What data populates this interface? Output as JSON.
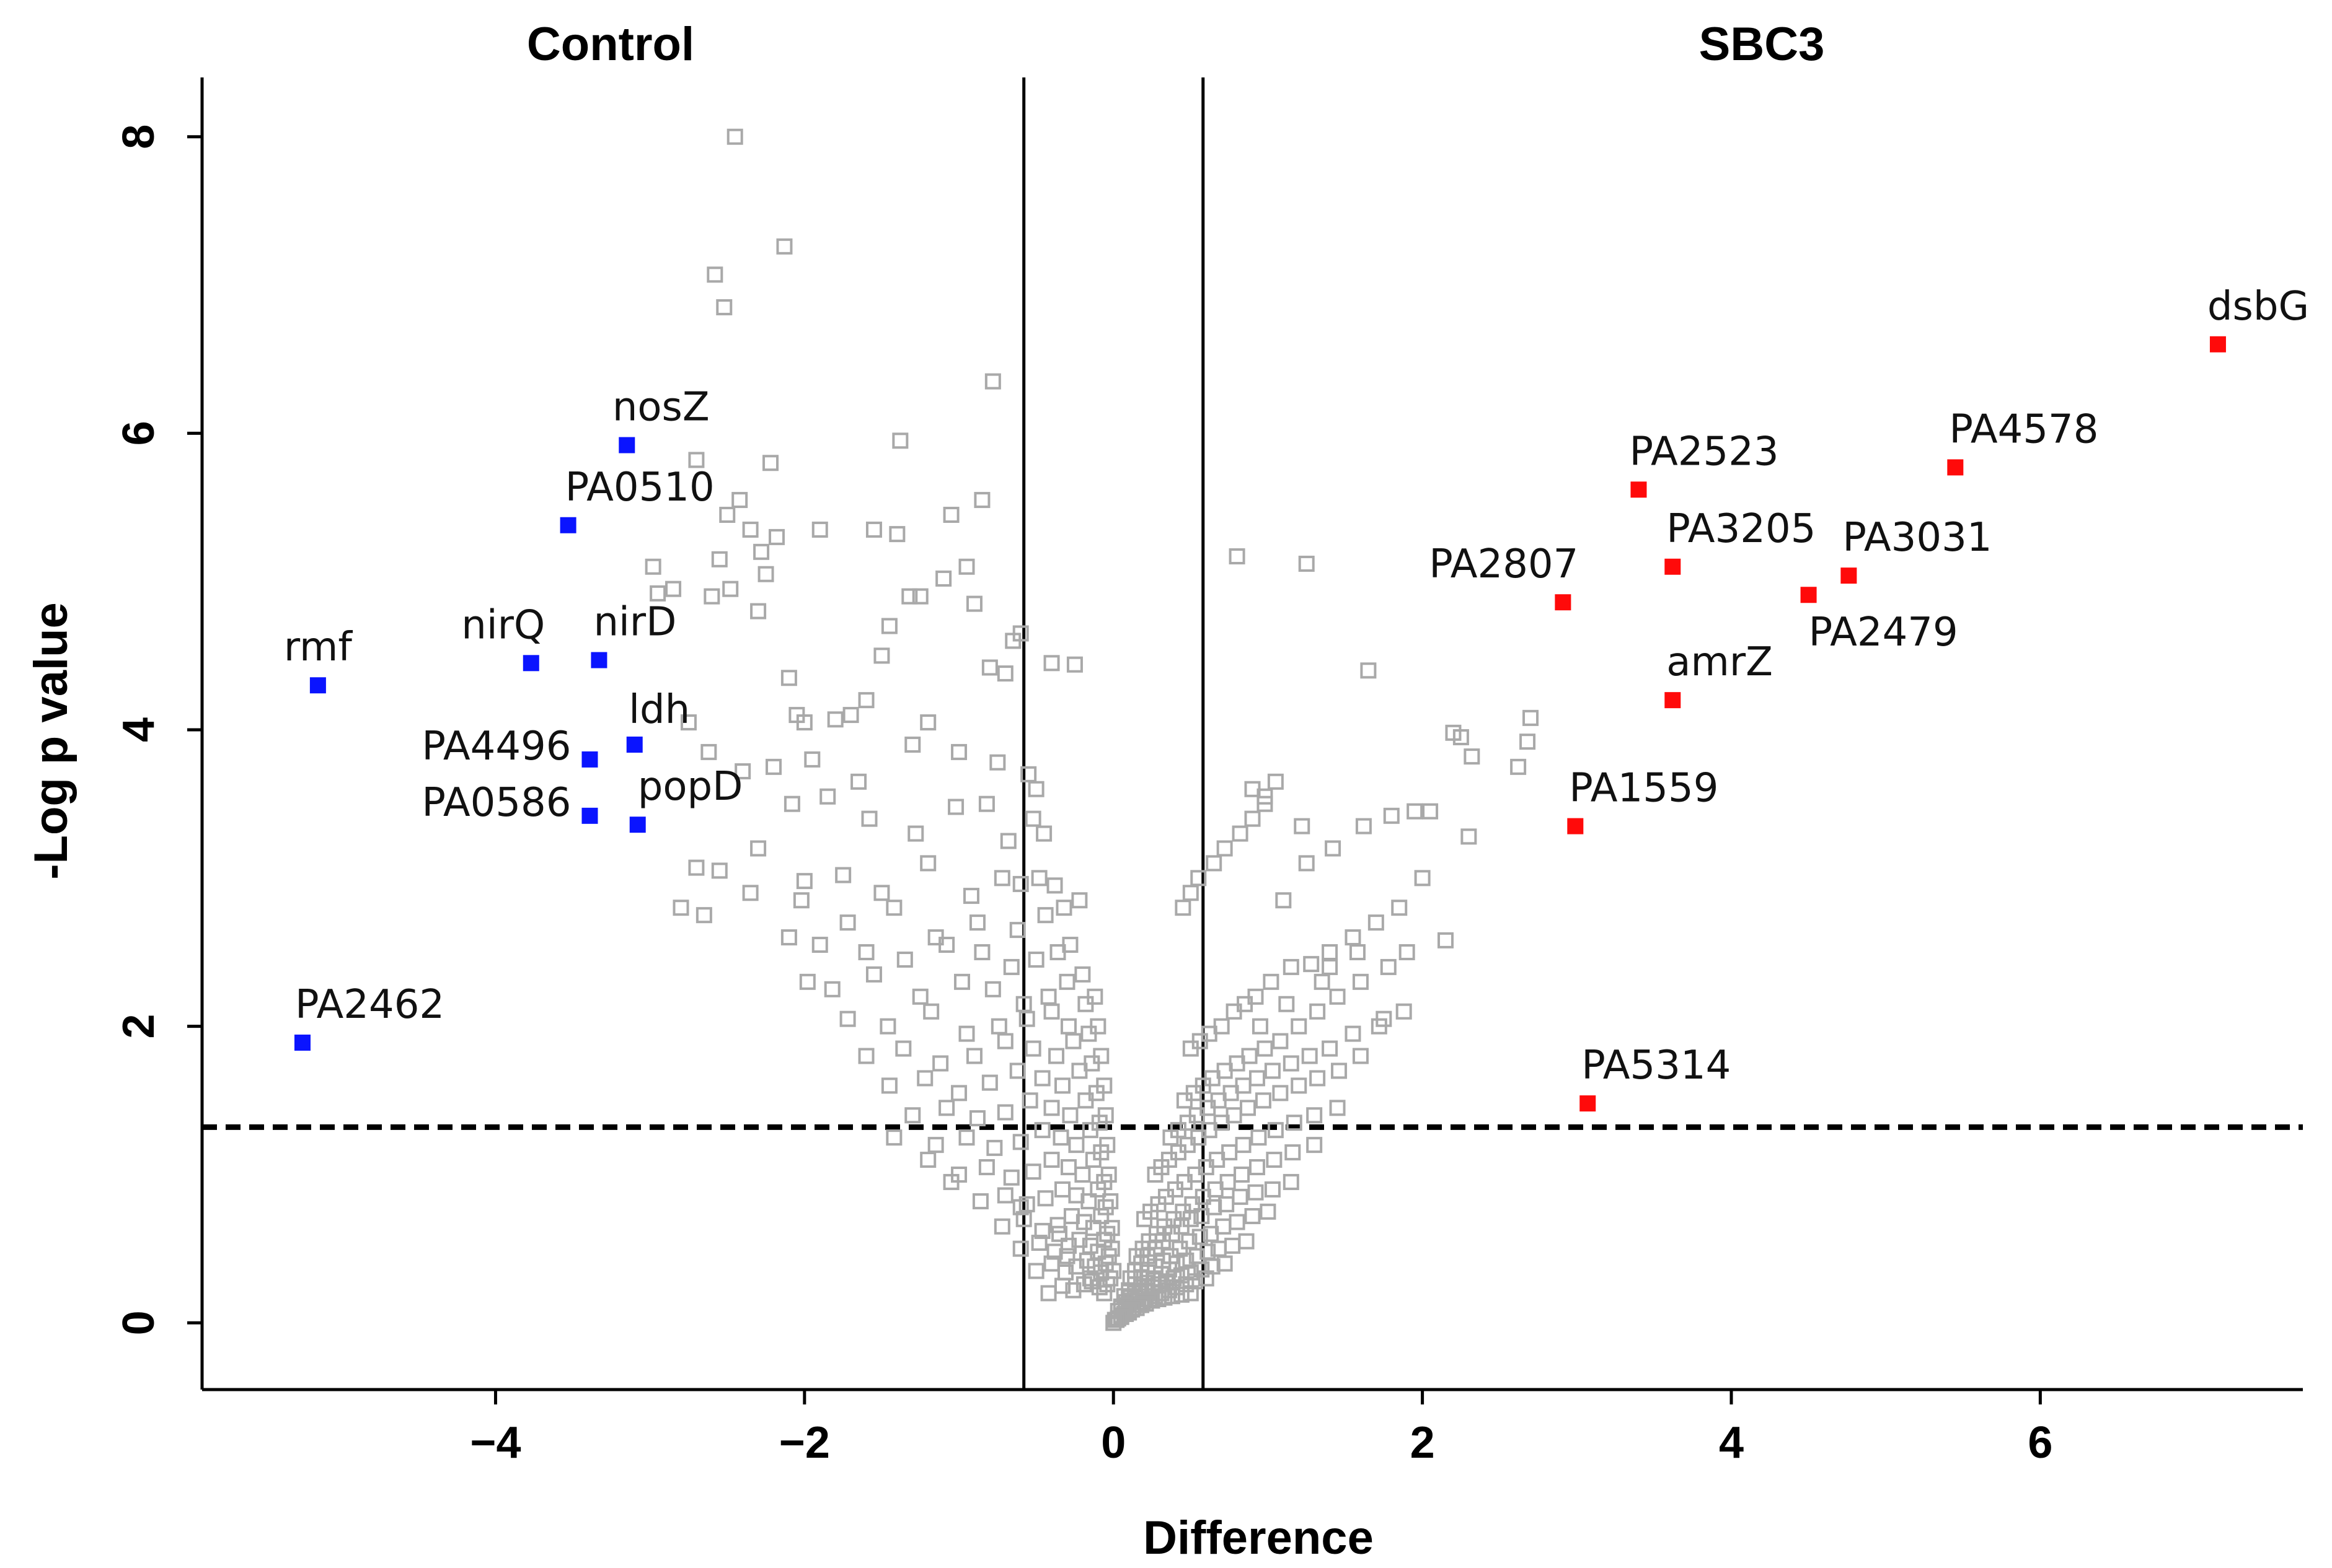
{
  "chart_data": {
    "type": "scatter",
    "title": "",
    "group_labels": {
      "left": "Control",
      "right": "SBC3"
    },
    "xlabel": "Difference",
    "ylabel": "-Log p value",
    "xlim": [
      -5.9,
      7.7
    ],
    "ylim": [
      -0.45,
      8.4
    ],
    "x_ticks": [
      -4,
      -2,
      0,
      2,
      4,
      6
    ],
    "x_tick_labels": [
      "−4",
      "−2",
      "0",
      "2",
      "4",
      "6"
    ],
    "y_ticks": [
      0,
      2,
      4,
      6,
      8
    ],
    "y_tick_labels": [
      "0",
      "2",
      "4",
      "6",
      "8"
    ],
    "grid": false,
    "fold_change_cutoffs": [
      -0.58,
      0.58
    ],
    "significance_cutoff": 1.32,
    "colors": {
      "control": "#0a14ff",
      "sbc3": "#ff0a0a",
      "background": "#a9a9a9"
    },
    "labeled_points": [
      {
        "name": "rmf",
        "x": -5.15,
        "y": 4.3,
        "group": "control"
      },
      {
        "name": "PA2462",
        "x": -5.25,
        "y": 1.89,
        "group": "control"
      },
      {
        "name": "nosZ",
        "x": -3.15,
        "y": 5.92,
        "group": "control"
      },
      {
        "name": "PA0510",
        "x": -3.53,
        "y": 5.38,
        "group": "control"
      },
      {
        "name": "nirQ",
        "x": -3.77,
        "y": 4.45,
        "group": "control"
      },
      {
        "name": "nirD",
        "x": -3.33,
        "y": 4.47,
        "group": "control"
      },
      {
        "name": "ldh",
        "x": -3.1,
        "y": 3.9,
        "group": "control"
      },
      {
        "name": "PA4496",
        "x": -3.39,
        "y": 3.8,
        "group": "control"
      },
      {
        "name": "PA0586",
        "x": -3.39,
        "y": 3.42,
        "group": "control"
      },
      {
        "name": "popD",
        "x": -3.08,
        "y": 3.36,
        "group": "control"
      },
      {
        "name": "dsbG",
        "x": 7.15,
        "y": 6.6,
        "group": "sbc3"
      },
      {
        "name": "PA4578",
        "x": 5.45,
        "y": 5.77,
        "group": "sbc3"
      },
      {
        "name": "PA2523",
        "x": 3.4,
        "y": 5.62,
        "group": "sbc3"
      },
      {
        "name": "PA3205",
        "x": 3.62,
        "y": 5.1,
        "group": "sbc3"
      },
      {
        "name": "PA3031",
        "x": 4.76,
        "y": 5.04,
        "group": "sbc3"
      },
      {
        "name": "PA2807",
        "x": 2.91,
        "y": 4.86,
        "group": "sbc3"
      },
      {
        "name": "PA2479",
        "x": 4.5,
        "y": 4.91,
        "group": "sbc3"
      },
      {
        "name": "amrZ",
        "x": 3.62,
        "y": 4.2,
        "group": "sbc3"
      },
      {
        "name": "PA1559",
        "x": 2.99,
        "y": 3.35,
        "group": "sbc3"
      },
      {
        "name": "PA5314",
        "x": 3.07,
        "y": 1.48,
        "group": "sbc3"
      }
    ],
    "background_points": {
      "x": [
        -2.45,
        -2.13,
        -2.58,
        -2.52,
        -0.78,
        -1.38,
        -2.7,
        -2.22,
        -2.42,
        -2.35,
        -0.85,
        -1.05,
        -2.5,
        -2.18,
        -2.28,
        -1.9,
        -2.98,
        -2.95,
        -2.55,
        -2.48,
        -2.3,
        -2.25,
        -1.25,
        -1.1,
        -0.95,
        -1.55,
        -1.4,
        -0.65,
        -2.6,
        -2.85,
        -1.45,
        -0.6,
        -2.0,
        -1.5,
        -1.32,
        -0.9,
        -1.6,
        -1.7,
        -0.8,
        -1.8,
        -2.1,
        -2.05,
        -1.2,
        -0.7,
        -0.4,
        -0.25,
        -2.2,
        -1.95,
        -1.65,
        -1.3,
        -1.0,
        -0.75,
        -0.55,
        -0.5,
        -2.75,
        -2.62,
        -2.4,
        -2.08,
        -1.85,
        -1.58,
        -1.28,
        -1.02,
        -0.82,
        -0.68,
        -0.52,
        -0.45,
        -2.7,
        -2.55,
        -2.3,
        -2.0,
        -1.75,
        -1.5,
        -1.2,
        -0.92,
        -0.72,
        -0.6,
        -0.48,
        -0.38,
        -2.8,
        -2.65,
        -2.35,
        -2.02,
        -1.72,
        -1.42,
        -1.15,
        -0.88,
        -0.62,
        -0.44,
        -0.32,
        -0.22,
        -2.1,
        -1.9,
        -1.6,
        -1.35,
        -1.08,
        -0.85,
        -0.66,
        -0.5,
        -0.36,
        -0.28,
        -1.98,
        -1.82,
        -1.55,
        -1.25,
        -0.98,
        -0.78,
        -0.58,
        -0.42,
        -0.3,
        -0.2,
        -1.72,
        -1.46,
        -1.18,
        -0.95,
        -0.74,
        -0.56,
        -0.4,
        -0.29,
        -0.18,
        -0.12,
        -1.6,
        -1.36,
        -1.12,
        -0.9,
        -0.7,
        -0.52,
        -0.37,
        -0.26,
        -0.16,
        -0.1,
        -1.45,
        -1.22,
        -1.0,
        -0.8,
        -0.62,
        -0.46,
        -0.33,
        -0.22,
        -0.14,
        -0.08,
        -1.3,
        -1.08,
        -0.88,
        -0.7,
        -0.54,
        -0.4,
        -0.28,
        -0.18,
        -0.11,
        -0.06,
        -1.15,
        -0.95,
        -0.77,
        -0.6,
        -0.46,
        -0.34,
        -0.24,
        -0.15,
        -0.09,
        -0.05,
        -1.0,
        -0.82,
        -0.66,
        -0.52,
        -0.4,
        -0.29,
        -0.2,
        -0.13,
        -0.08,
        -0.04,
        -0.86,
        -0.7,
        -0.56,
        -0.44,
        -0.33,
        -0.24,
        -0.16,
        -0.1,
        -0.06,
        -0.03,
        -0.72,
        -0.58,
        -0.46,
        -0.36,
        -0.27,
        -0.19,
        -0.13,
        -0.08,
        -0.05,
        -0.02,
        -0.6,
        -0.48,
        -0.38,
        -0.29,
        -0.22,
        -0.15,
        -0.1,
        -0.06,
        -0.04,
        -0.01,
        -0.5,
        -0.4,
        -0.31,
        -0.24,
        -0.17,
        -0.12,
        -0.08,
        -0.05,
        -0.03,
        -0.01,
        -0.42,
        -0.33,
        -0.26,
        -0.19,
        -0.14,
        -0.09,
        -0.06,
        -0.04,
        -0.02,
        0.0,
        -1.42,
        -1.2,
        -1.05,
        -0.6,
        -0.35,
        -0.3,
        -0.15,
        0.8,
        1.25,
        1.65,
        2.2,
        2.25,
        2.32,
        2.7,
        2.68,
        2.62,
        2.05,
        1.95,
        1.8,
        1.62,
        1.42,
        1.25,
        1.05,
        0.98,
        0.9,
        0.82,
        0.72,
        0.65,
        0.55,
        0.5,
        0.45,
        2.3,
        2.0,
        1.85,
        1.7,
        1.55,
        1.4,
        1.28,
        1.15,
        1.02,
        0.92,
        0.85,
        0.78,
        0.7,
        0.62,
        0.56,
        0.5,
        2.15,
        1.9,
        1.78,
        1.6,
        1.45,
        1.32,
        1.2,
        1.08,
        0.98,
        0.88,
        0.8,
        0.72,
        0.64,
        0.58,
        0.52,
        0.46,
        1.88,
        1.72,
        1.55,
        1.4,
        1.27,
        1.15,
        1.03,
        0.93,
        0.84,
        0.76,
        0.68,
        0.61,
        0.54,
        0.48,
        0.42,
        0.37,
        1.6,
        1.46,
        1.32,
        1.2,
        1.08,
        0.97,
        0.87,
        0.78,
        0.7,
        0.62,
        0.55,
        0.48,
        0.42,
        0.36,
        0.31,
        0.27,
        1.45,
        1.3,
        1.17,
        1.05,
        0.94,
        0.84,
        0.75,
        0.67,
        0.6,
        0.53,
        0.46,
        0.4,
        0.34,
        0.29,
        0.24,
        0.2,
        1.3,
        1.16,
        1.04,
        0.93,
        0.83,
        0.74,
        0.66,
        0.58,
        0.51,
        0.45,
        0.39,
        0.33,
        0.28,
        0.23,
        0.19,
        0.15,
        1.15,
        1.03,
        0.92,
        0.82,
        0.73,
        0.65,
        0.57,
        0.5,
        0.44,
        0.38,
        0.32,
        0.27,
        0.22,
        0.18,
        0.14,
        0.11,
        1.0,
        0.9,
        0.8,
        0.71,
        0.63,
        0.56,
        0.49,
        0.43,
        0.37,
        0.32,
        0.27,
        0.22,
        0.18,
        0.14,
        0.1,
        0.07,
        0.86,
        0.77,
        0.68,
        0.61,
        0.54,
        0.47,
        0.41,
        0.36,
        0.31,
        0.26,
        0.22,
        0.18,
        0.14,
        0.11,
        0.08,
        0.05,
        0.72,
        0.64,
        0.57,
        0.5,
        0.44,
        0.39,
        0.34,
        0.29,
        0.25,
        0.21,
        0.17,
        0.14,
        0.11,
        0.08,
        0.05,
        0.03,
        0.6,
        0.53,
        0.47,
        0.41,
        0.36,
        0.31,
        0.27,
        0.23,
        0.19,
        0.16,
        0.13,
        0.1,
        0.08,
        0.05,
        0.03,
        0.01,
        0.5,
        0.44,
        0.38,
        0.33,
        0.29,
        0.25,
        0.21,
        0.18,
        0.15,
        0.12,
        0.1,
        0.07,
        0.05,
        0.03,
        0.02,
        0.0,
        0.95,
        1.12,
        1.35,
        1.58,
        0.98,
        1.22,
        0.9,
        1.1,
        1.4,
        1.75
      ],
      "y": [
        8.0,
        7.26,
        7.07,
        6.85,
        6.35,
        5.95,
        5.82,
        5.8,
        5.55,
        5.35,
        5.55,
        5.45,
        5.45,
        5.3,
        5.2,
        5.35,
        5.1,
        4.92,
        5.15,
        4.95,
        4.8,
        5.05,
        4.9,
        5.02,
        5.1,
        5.35,
        5.32,
        4.6,
        4.9,
        4.95,
        4.7,
        4.65,
        4.05,
        4.5,
        4.9,
        4.85,
        4.2,
        4.1,
        4.42,
        4.07,
        4.35,
        4.1,
        4.05,
        4.38,
        4.45,
        4.44,
        3.75,
        3.8,
        3.65,
        3.9,
        3.85,
        3.78,
        3.7,
        3.6,
        4.05,
        3.85,
        3.72,
        3.5,
        3.55,
        3.4,
        3.3,
        3.48,
        3.5,
        3.25,
        3.4,
        3.3,
        3.07,
        3.05,
        3.2,
        2.98,
        3.02,
        2.9,
        3.1,
        2.88,
        3.0,
        2.96,
        3.0,
        2.95,
        2.8,
        2.75,
        2.9,
        2.85,
        2.7,
        2.8,
        2.6,
        2.7,
        2.65,
        2.75,
        2.8,
        2.85,
        2.6,
        2.55,
        2.5,
        2.45,
        2.55,
        2.5,
        2.4,
        2.45,
        2.5,
        2.55,
        2.3,
        2.25,
        2.35,
        2.2,
        2.3,
        2.25,
        2.15,
        2.2,
        2.3,
        2.35,
        2.05,
        2.0,
        2.1,
        1.95,
        2.0,
        2.05,
        2.1,
        2.0,
        2.15,
        2.2,
        1.8,
        1.85,
        1.75,
        1.8,
        1.9,
        1.85,
        1.8,
        1.9,
        1.95,
        2.0,
        1.6,
        1.65,
        1.55,
        1.62,
        1.7,
        1.65,
        1.6,
        1.7,
        1.75,
        1.8,
        1.4,
        1.45,
        1.38,
        1.42,
        1.5,
        1.45,
        1.4,
        1.5,
        1.55,
        1.6,
        1.2,
        1.25,
        1.18,
        1.22,
        1.3,
        1.25,
        1.2,
        1.3,
        1.35,
        1.4,
        1.0,
        1.05,
        0.98,
        1.02,
        1.1,
        1.05,
        1.0,
        1.1,
        1.15,
        1.2,
        0.82,
        0.86,
        0.8,
        0.84,
        0.9,
        0.86,
        0.82,
        0.9,
        0.95,
        1.0,
        0.65,
        0.7,
        0.62,
        0.66,
        0.72,
        0.68,
        0.64,
        0.72,
        0.78,
        0.82,
        0.5,
        0.54,
        0.48,
        0.52,
        0.56,
        0.52,
        0.48,
        0.56,
        0.6,
        0.64,
        0.35,
        0.4,
        0.34,
        0.38,
        0.42,
        0.38,
        0.34,
        0.4,
        0.45,
        0.5,
        0.2,
        0.25,
        0.22,
        0.26,
        0.28,
        0.24,
        0.2,
        0.26,
        0.3,
        0.35,
        1.25,
        1.1,
        0.95,
        0.78,
        0.6,
        0.45,
        0.3,
        5.17,
        5.12,
        4.4,
        3.98,
        3.95,
        3.82,
        4.08,
        3.92,
        3.75,
        3.45,
        3.45,
        3.42,
        3.35,
        3.2,
        3.1,
        3.65,
        3.55,
        3.4,
        3.3,
        3.2,
        3.1,
        3.0,
        2.9,
        2.8,
        3.28,
        3.0,
        2.8,
        2.7,
        2.6,
        2.5,
        2.42,
        2.4,
        2.3,
        2.2,
        2.15,
        2.1,
        2.0,
        1.95,
        1.9,
        1.85,
        2.58,
        2.5,
        2.4,
        2.3,
        2.2,
        2.1,
        2.0,
        1.9,
        1.85,
        1.8,
        1.75,
        1.7,
        1.65,
        1.6,
        1.55,
        1.5,
        2.1,
        2.0,
        1.95,
        1.85,
        1.8,
        1.75,
        1.7,
        1.65,
        1.6,
        1.55,
        1.5,
        1.45,
        1.4,
        1.35,
        1.3,
        1.25,
        1.8,
        1.7,
        1.65,
        1.6,
        1.55,
        1.5,
        1.45,
        1.4,
        1.35,
        1.3,
        1.25,
        1.2,
        1.15,
        1.1,
        1.05,
        1.0,
        1.45,
        1.4,
        1.35,
        1.3,
        1.25,
        1.2,
        1.15,
        1.1,
        1.05,
        1.0,
        0.95,
        0.9,
        0.85,
        0.8,
        0.75,
        0.7,
        1.2,
        1.15,
        1.1,
        1.05,
        1.0,
        0.95,
        0.9,
        0.85,
        0.8,
        0.75,
        0.7,
        0.65,
        0.6,
        0.55,
        0.5,
        0.45,
        0.95,
        0.9,
        0.88,
        0.85,
        0.8,
        0.78,
        0.72,
        0.7,
        0.65,
        0.6,
        0.55,
        0.5,
        0.45,
        0.4,
        0.35,
        0.3,
        0.75,
        0.72,
        0.68,
        0.65,
        0.6,
        0.58,
        0.55,
        0.5,
        0.45,
        0.42,
        0.38,
        0.34,
        0.3,
        0.26,
        0.22,
        0.18,
        0.55,
        0.52,
        0.5,
        0.48,
        0.45,
        0.42,
        0.4,
        0.36,
        0.33,
        0.3,
        0.27,
        0.24,
        0.2,
        0.17,
        0.14,
        0.11,
        0.4,
        0.38,
        0.36,
        0.34,
        0.32,
        0.3,
        0.28,
        0.26,
        0.24,
        0.22,
        0.2,
        0.18,
        0.15,
        0.12,
        0.1,
        0.08,
        0.3,
        0.28,
        0.26,
        0.24,
        0.22,
        0.2,
        0.18,
        0.16,
        0.14,
        0.12,
        0.1,
        0.08,
        0.06,
        0.05,
        0.03,
        0.02,
        0.2,
        0.19,
        0.18,
        0.17,
        0.16,
        0.15,
        0.13,
        0.12,
        0.1,
        0.09,
        0.07,
        0.06,
        0.04,
        0.03,
        0.02,
        0.0,
        2.0,
        2.15,
        2.3,
        2.5,
        3.5,
        3.35,
        3.6,
        2.85,
        2.4,
        2.05
      ]
    }
  }
}
